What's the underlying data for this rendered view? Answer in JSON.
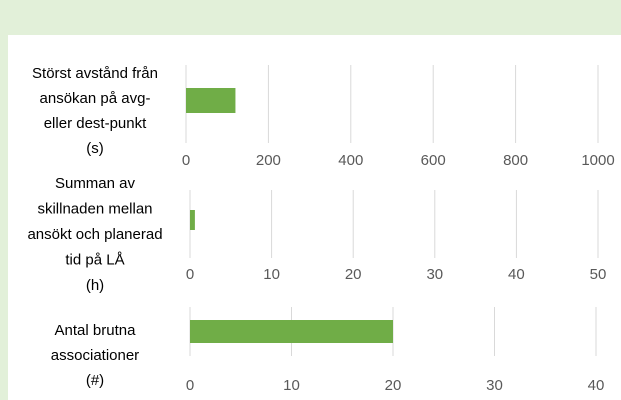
{
  "chart_data": [
    {
      "type": "bar",
      "orientation": "horizontal",
      "categories": [
        [
          "Störst avstånd från",
          "ansökan på avg-",
          "eller dest-punkt",
          "(s)"
        ]
      ],
      "values": [
        120
      ],
      "color": "#70ad47",
      "xlim": [
        0,
        1000
      ],
      "xticks": [
        0,
        200,
        400,
        600,
        800,
        1000
      ],
      "grid": true
    },
    {
      "type": "bar",
      "orientation": "horizontal",
      "categories": [
        [
          "Summan av",
          "skillnaden mellan",
          "ansökt och planerad",
          "tid på LÅ",
          "(h)"
        ]
      ],
      "values": [
        0.6
      ],
      "color": "#70ad47",
      "xlim": [
        0,
        50
      ],
      "xticks": [
        0,
        10,
        20,
        30,
        40,
        50
      ],
      "grid": true
    },
    {
      "type": "bar",
      "orientation": "horizontal",
      "categories": [
        [
          "Antal brutna",
          "associationer",
          "(#)"
        ]
      ],
      "values": [
        20
      ],
      "color": "#70ad47",
      "xlim": [
        0,
        40
      ],
      "xticks": [
        0,
        10,
        20,
        30,
        40
      ],
      "grid": true
    }
  ]
}
